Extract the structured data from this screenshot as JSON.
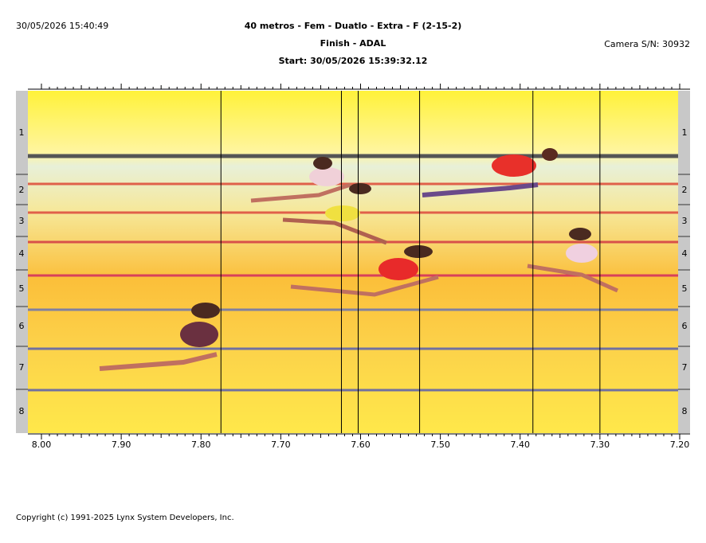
{
  "header": {
    "timestamp": "30/05/2026 15:40:49",
    "title": "40 metros - Fem - Duatlo - Extra - F (2-15-2)",
    "subtitle": "Finish - ADAL",
    "start": "Start: 30/05/2026 15:39:32.12",
    "camera": "Camera S/N: 30932"
  },
  "photo": {
    "lanes": [
      "1",
      "2",
      "3",
      "4",
      "5",
      "6",
      "7",
      "8"
    ],
    "xlim": [
      8.0,
      7.2
    ],
    "xticks": [
      {
        "value": 8.0,
        "label": "8.00"
      },
      {
        "value": 7.9,
        "label": "7.90"
      },
      {
        "value": 7.8,
        "label": "7.80"
      },
      {
        "value": 7.7,
        "label": "7.70"
      },
      {
        "value": 7.6,
        "label": "7.60"
      },
      {
        "value": 7.5,
        "label": "7.50"
      },
      {
        "value": 7.4,
        "label": "7.40"
      },
      {
        "value": 7.3,
        "label": "7.30"
      },
      {
        "value": 7.2,
        "label": "7.20"
      }
    ],
    "finish_lines": [
      7.775,
      7.624,
      7.603,
      7.526,
      7.384,
      7.3
    ]
  },
  "footer": {
    "copyright": "Copyright (c) 1991-2025 Lynx System Developers, Inc."
  }
}
